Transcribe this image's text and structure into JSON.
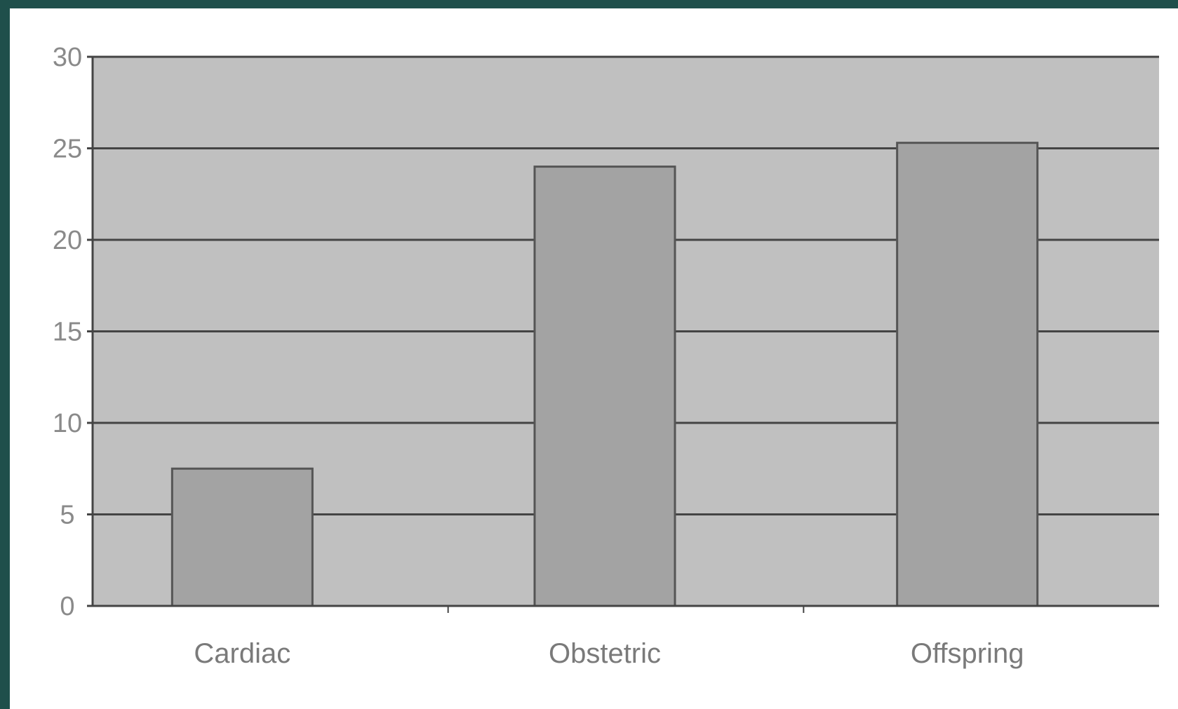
{
  "chart_data": {
    "type": "bar",
    "categories": [
      "Cardiac",
      "Obstetric",
      "Offspring"
    ],
    "values": [
      7.5,
      24,
      25.3
    ],
    "ylim": [
      0,
      30
    ],
    "yticks": [
      "0",
      "5",
      "10",
      "15",
      "20",
      "25",
      "30"
    ],
    "grid": true,
    "legend": "none",
    "title": "",
    "xlabel": "",
    "ylabel": ""
  },
  "colors": {
    "background": "#1f4f4b",
    "plot_area": "#c0c0c0",
    "bar_fill": "#a3a3a3",
    "bar_stroke": "#555555",
    "gridline": "#444444"
  }
}
